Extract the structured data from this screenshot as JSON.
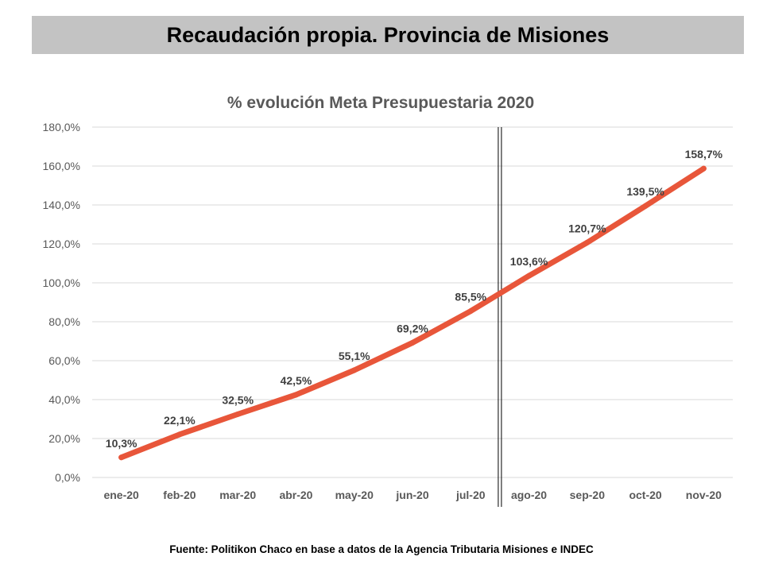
{
  "header": {
    "title": "Recaudación propia. Provincia de Misiones"
  },
  "footer": {
    "source": "Fuente: Politikon Chaco en base a datos de la Agencia Tributaria Misiones e INDEC"
  },
  "colors": {
    "title_bar_bg": "#c3c3c3",
    "line": "#e8563a",
    "grid": "#d9d9d9",
    "axis_text": "#595959",
    "data_label": "#404040",
    "divider": "#000000"
  },
  "chart_data": {
    "type": "line",
    "title": "% evolución Meta Presupuestaria 2020",
    "xlabel": "",
    "ylabel": "",
    "categories": [
      "ene-20",
      "feb-20",
      "mar-20",
      "abr-20",
      "may-20",
      "jun-20",
      "jul-20",
      "ago-20",
      "sep-20",
      "oct-20",
      "nov-20"
    ],
    "series": [
      {
        "values": [
          10.3,
          22.1,
          32.5,
          42.5,
          55.1,
          69.2,
          85.5,
          103.6,
          120.7,
          139.5,
          158.7
        ],
        "labels": [
          "10,3%",
          "22,1%",
          "32,5%",
          "42,5%",
          "55,1%",
          "69,2%",
          "85,5%",
          "103,6%",
          "120,7%",
          "139,5%",
          "158,7%"
        ]
      }
    ],
    "ylim": [
      0,
      180
    ],
    "yticks": [
      0,
      20,
      40,
      60,
      80,
      100,
      120,
      140,
      160,
      180
    ],
    "ytick_labels": [
      "0,0%",
      "20,0%",
      "40,0%",
      "60,0%",
      "80,0%",
      "100,0%",
      "120,0%",
      "140,0%",
      "160,0%",
      "180,0%"
    ],
    "grid": true,
    "legend": "none",
    "divider_between": [
      "jul-20",
      "ago-20"
    ]
  }
}
